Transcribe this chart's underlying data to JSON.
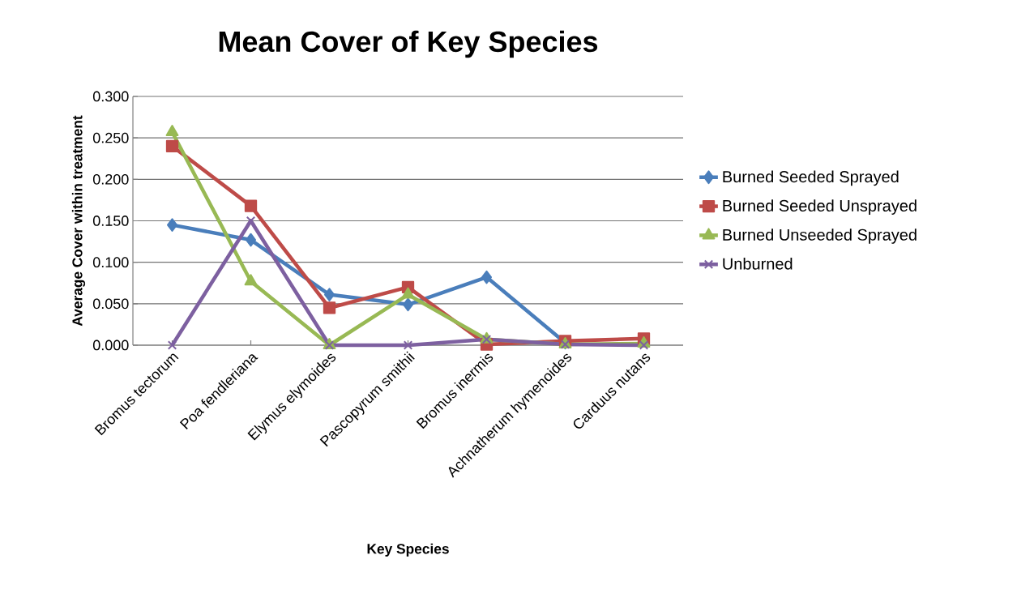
{
  "chart_data": {
    "type": "line",
    "title": "Mean Cover of Key Species",
    "xlabel": "Key Species",
    "ylabel": "Average Cover within treatment",
    "categories": [
      "Bromus tectorum",
      "Poa fendleriana",
      "Elymus elymoides",
      "Pascopyrum smithii",
      "Bromus inermis",
      "Achnatherum hymenoides",
      "Carduus nutans"
    ],
    "series": [
      {
        "name": "Burned Seeded Sprayed",
        "color": "#4a7ebb",
        "marker": "diamond",
        "values": [
          0.145,
          0.127,
          0.061,
          0.049,
          0.082,
          0.003,
          null
        ]
      },
      {
        "name": "Burned Seeded Unsprayed",
        "color": "#be4b48",
        "marker": "square",
        "values": [
          0.24,
          0.168,
          0.045,
          0.07,
          0.001,
          0.005,
          0.008
        ]
      },
      {
        "name": "Burned Unseeded Sprayed",
        "color": "#98b954",
        "marker": "triangle",
        "values": [
          0.257,
          0.077,
          0.0,
          0.061,
          0.007,
          0.001,
          0.002
        ]
      },
      {
        "name": "Unburned",
        "color": "#7d60a0",
        "marker": "cross",
        "values": [
          0.0,
          0.15,
          0.0,
          0.0,
          0.007,
          0.001,
          0.0
        ]
      }
    ],
    "ylim": [
      0,
      0.3
    ],
    "yticks": [
      {
        "value": 0,
        "label": "0.000"
      },
      {
        "value": 0.05,
        "label": "0.050"
      },
      {
        "value": 0.1,
        "label": "0.100"
      },
      {
        "value": 0.15,
        "label": "0.150"
      },
      {
        "value": 0.2,
        "label": "0.200"
      },
      {
        "value": 0.25,
        "label": "0.250"
      },
      {
        "value": 0.3,
        "label": "0.300"
      }
    ],
    "grid": "y",
    "legend": "right",
    "line_style": "solid"
  }
}
